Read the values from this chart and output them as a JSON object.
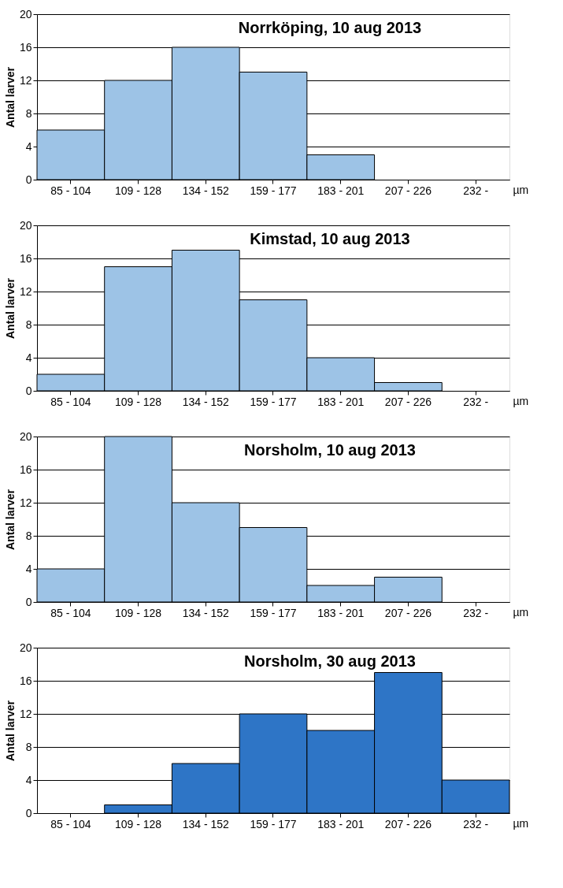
{
  "chart_data": [
    {
      "type": "bar",
      "title": "Norrköping, 10 aug 2013",
      "ylabel": "Antal larver",
      "xlabel": "µm",
      "categories": [
        "85 - 104",
        "109 - 128",
        "134 - 152",
        "159 - 177",
        "183 - 201",
        "207 - 226",
        "232 -"
      ],
      "values": [
        6,
        12,
        16,
        13,
        3,
        0,
        0
      ],
      "color": "#9dc3e6",
      "ylim": [
        0,
        20
      ],
      "yticks": [
        0,
        4,
        8,
        12,
        16,
        20
      ],
      "grid": "y"
    },
    {
      "type": "bar",
      "title": "Kimstad, 10 aug 2013",
      "ylabel": "Antal larver",
      "xlabel": "µm",
      "categories": [
        "85 - 104",
        "109 - 128",
        "134 - 152",
        "159 - 177",
        "183 - 201",
        "207 - 226",
        "232 -"
      ],
      "values": [
        2,
        15,
        17,
        11,
        4,
        1,
        0
      ],
      "color": "#9dc3e6",
      "ylim": [
        0,
        20
      ],
      "yticks": [
        0,
        4,
        8,
        12,
        16,
        20
      ],
      "grid": "y"
    },
    {
      "type": "bar",
      "title": "Norsholm, 10 aug 2013",
      "ylabel": "Antal larver",
      "xlabel": "µm",
      "categories": [
        "85 - 104",
        "109 - 128",
        "134 - 152",
        "159 - 177",
        "183 - 201",
        "207 - 226",
        "232 -"
      ],
      "values": [
        4,
        20,
        12,
        9,
        2,
        3,
        0
      ],
      "color": "#9dc3e6",
      "ylim": [
        0,
        20
      ],
      "yticks": [
        0,
        4,
        8,
        12,
        16,
        20
      ],
      "grid": "y"
    },
    {
      "type": "bar",
      "title": "Norsholm, 30 aug 2013",
      "ylabel": "Antal larver",
      "xlabel": "µm",
      "categories": [
        "85 - 104",
        "109 - 128",
        "134 - 152",
        "159 - 177",
        "183 - 201",
        "207 - 226",
        "232 -"
      ],
      "values": [
        0,
        1,
        6,
        12,
        10,
        17,
        4
      ],
      "color": "#2e75c6",
      "ylim": [
        0,
        20
      ],
      "yticks": [
        0,
        4,
        8,
        12,
        16,
        20
      ],
      "grid": "y"
    }
  ]
}
